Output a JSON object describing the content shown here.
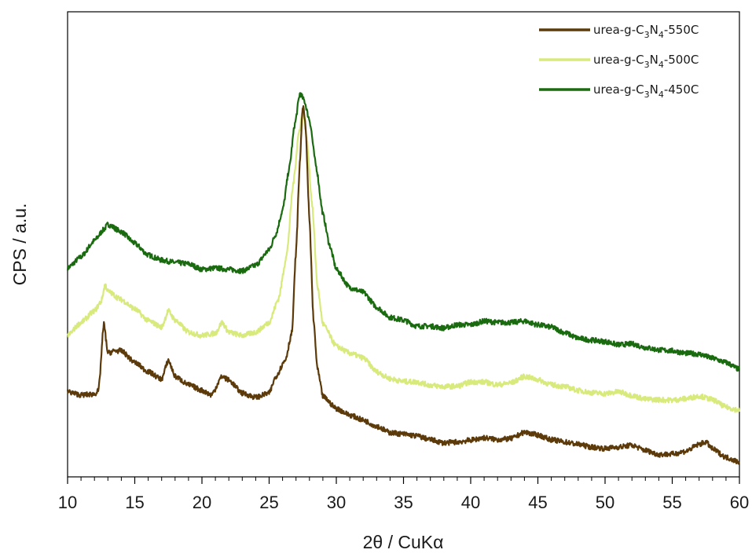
{
  "chart_data": {
    "type": "line",
    "title": "",
    "xlabel": "2θ / CuKα",
    "ylabel": "CPS / a.u.",
    "xlim": [
      10,
      60
    ],
    "xticks": [
      10,
      15,
      20,
      25,
      30,
      35,
      40,
      45,
      50,
      55,
      60
    ],
    "ylim": [
      0,
      100
    ],
    "y_tick_labels_shown": false,
    "grid": false,
    "legend_position": "top-right",
    "series": [
      {
        "name": "urea-g-C3N4-550C",
        "legend": {
          "base": "urea-g-C",
          "sub1": "3",
          "mid": "N",
          "sub2": "4",
          "tail": "-550C"
        },
        "color": "#5c3a0a",
        "points": [
          [
            10,
            18.3
          ],
          [
            11,
            17.6
          ],
          [
            12,
            17.8
          ],
          [
            12.3,
            18.5
          ],
          [
            12.7,
            32.9
          ],
          [
            13.0,
            26.6
          ],
          [
            13.5,
            27.1
          ],
          [
            14,
            27.1
          ],
          [
            15,
            24.6
          ],
          [
            16,
            22.6
          ],
          [
            17,
            21.0
          ],
          [
            17.5,
            25.1
          ],
          [
            18,
            21.6
          ],
          [
            19,
            19.8
          ],
          [
            20,
            18.6
          ],
          [
            20.7,
            17.6
          ],
          [
            21.5,
            21.6
          ],
          [
            22,
            20.8
          ],
          [
            23,
            18.0
          ],
          [
            24,
            17.1
          ],
          [
            25,
            18.0
          ],
          [
            25.5,
            21.6
          ],
          [
            26.2,
            25.1
          ],
          [
            26.7,
            31.1
          ],
          [
            27.0,
            48.5
          ],
          [
            27.3,
            68.4
          ],
          [
            27.5,
            80.0
          ],
          [
            27.7,
            76.0
          ],
          [
            28.0,
            55.3
          ],
          [
            28.3,
            33.7
          ],
          [
            28.6,
            23.1
          ],
          [
            29,
            17.3
          ],
          [
            30,
            14.7
          ],
          [
            31,
            13.3
          ],
          [
            32,
            12.2
          ],
          [
            33,
            10.9
          ],
          [
            34,
            9.5
          ],
          [
            35,
            9.2
          ],
          [
            36,
            8.8
          ],
          [
            37,
            8.0
          ],
          [
            38,
            7.3
          ],
          [
            39,
            7.5
          ],
          [
            40,
            7.9
          ],
          [
            41,
            8.4
          ],
          [
            42,
            8.0
          ],
          [
            43,
            8.2
          ],
          [
            44,
            9.6
          ],
          [
            45,
            9.0
          ],
          [
            46,
            8.0
          ],
          [
            47,
            7.5
          ],
          [
            48,
            7.0
          ],
          [
            49,
            6.4
          ],
          [
            50,
            6.1
          ],
          [
            51,
            6.4
          ],
          [
            52,
            6.8
          ],
          [
            53,
            5.7
          ],
          [
            54,
            4.8
          ],
          [
            55,
            4.9
          ],
          [
            56,
            5.5
          ],
          [
            57,
            7.0
          ],
          [
            57.5,
            7.5
          ],
          [
            58,
            6.0
          ],
          [
            59,
            4.2
          ],
          [
            60,
            3.2
          ]
        ]
      },
      {
        "name": "urea-g-C3N4-500C",
        "legend": {
          "base": "urea-g-C",
          "sub1": "3",
          "mid": "N",
          "sub2": "4",
          "tail": "-500C"
        },
        "color": "#d9ea7c",
        "points": [
          [
            10,
            30.4
          ],
          [
            11,
            33.2
          ],
          [
            12,
            35.7
          ],
          [
            12.5,
            37.7
          ],
          [
            12.8,
            41.4
          ],
          [
            13,
            39.9
          ],
          [
            14,
            38.1
          ],
          [
            15,
            36.1
          ],
          [
            16,
            33.6
          ],
          [
            17,
            32.2
          ],
          [
            17.5,
            35.7
          ],
          [
            18,
            33.7
          ],
          [
            19,
            31.1
          ],
          [
            20,
            30.4
          ],
          [
            21,
            30.9
          ],
          [
            21.5,
            33.2
          ],
          [
            22,
            31.1
          ],
          [
            23,
            30.4
          ],
          [
            24,
            31.1
          ],
          [
            25,
            33.2
          ],
          [
            25.7,
            38.3
          ],
          [
            26.3,
            47.6
          ],
          [
            26.8,
            63.1
          ],
          [
            27.2,
            73.8
          ],
          [
            27.5,
            78.7
          ],
          [
            27.8,
            72.8
          ],
          [
            28.2,
            58.5
          ],
          [
            28.6,
            40.9
          ],
          [
            29,
            32.9
          ],
          [
            30,
            28.1
          ],
          [
            31,
            26.6
          ],
          [
            32,
            25.6
          ],
          [
            33,
            22.6
          ],
          [
            34,
            21.1
          ],
          [
            35,
            20.5
          ],
          [
            36,
            20.4
          ],
          [
            37,
            19.7
          ],
          [
            38,
            19.4
          ],
          [
            39,
            19.5
          ],
          [
            40,
            20.4
          ],
          [
            41,
            20.4
          ],
          [
            42,
            19.8
          ],
          [
            43,
            20.2
          ],
          [
            44,
            21.6
          ],
          [
            45,
            20.9
          ],
          [
            46,
            19.8
          ],
          [
            47,
            19.4
          ],
          [
            48,
            18.6
          ],
          [
            49,
            18.1
          ],
          [
            50,
            17.9
          ],
          [
            51,
            18.3
          ],
          [
            52,
            17.5
          ],
          [
            53,
            16.7
          ],
          [
            54,
            16.6
          ],
          [
            55,
            16.5
          ],
          [
            56,
            16.8
          ],
          [
            57,
            17.4
          ],
          [
            58,
            16.6
          ],
          [
            59,
            15.0
          ],
          [
            60,
            14.3
          ]
        ]
      },
      {
        "name": "urea-g-C3N4-450C",
        "legend": {
          "base": "urea-g-C",
          "sub1": "3",
          "mid": "N",
          "sub2": "4",
          "tail": "-450C"
        },
        "color": "#1a6b10",
        "points": [
          [
            10,
            44.9
          ],
          [
            11,
            47.3
          ],
          [
            12,
            50.8
          ],
          [
            12.7,
            53.2
          ],
          [
            13,
            54.3
          ],
          [
            14,
            52.7
          ],
          [
            15,
            50.2
          ],
          [
            16,
            47.7
          ],
          [
            17,
            46.6
          ],
          [
            18,
            46.1
          ],
          [
            19,
            45.8
          ],
          [
            20,
            44.6
          ],
          [
            21,
            44.9
          ],
          [
            22,
            44.6
          ],
          [
            23,
            44.3
          ],
          [
            24,
            45.5
          ],
          [
            25,
            48.8
          ],
          [
            25.5,
            52.2
          ],
          [
            26,
            57.3
          ],
          [
            26.5,
            66.4
          ],
          [
            26.9,
            75.7
          ],
          [
            27.3,
            82.5
          ],
          [
            27.6,
            81.0
          ],
          [
            28,
            76.8
          ],
          [
            28.5,
            66.7
          ],
          [
            29,
            56.5
          ],
          [
            29.5,
            49.8
          ],
          [
            30,
            44.6
          ],
          [
            31,
            40.7
          ],
          [
            32,
            39.7
          ],
          [
            33,
            36.5
          ],
          [
            34,
            34.3
          ],
          [
            35,
            33.7
          ],
          [
            36,
            32.4
          ],
          [
            37,
            32.4
          ],
          [
            38,
            32.0
          ],
          [
            39,
            32.7
          ],
          [
            40,
            32.7
          ],
          [
            41,
            33.5
          ],
          [
            42,
            33.2
          ],
          [
            43,
            33.2
          ],
          [
            44,
            33.5
          ],
          [
            45,
            32.7
          ],
          [
            46,
            32.2
          ],
          [
            47,
            31.0
          ],
          [
            48,
            29.8
          ],
          [
            49,
            29.4
          ],
          [
            50,
            29.1
          ],
          [
            51,
            28.4
          ],
          [
            52,
            28.6
          ],
          [
            53,
            27.8
          ],
          [
            54,
            27.3
          ],
          [
            55,
            27.1
          ],
          [
            56,
            26.6
          ],
          [
            57,
            26.4
          ],
          [
            58,
            25.5
          ],
          [
            59,
            24.6
          ],
          [
            60,
            23.1
          ]
        ]
      }
    ]
  }
}
